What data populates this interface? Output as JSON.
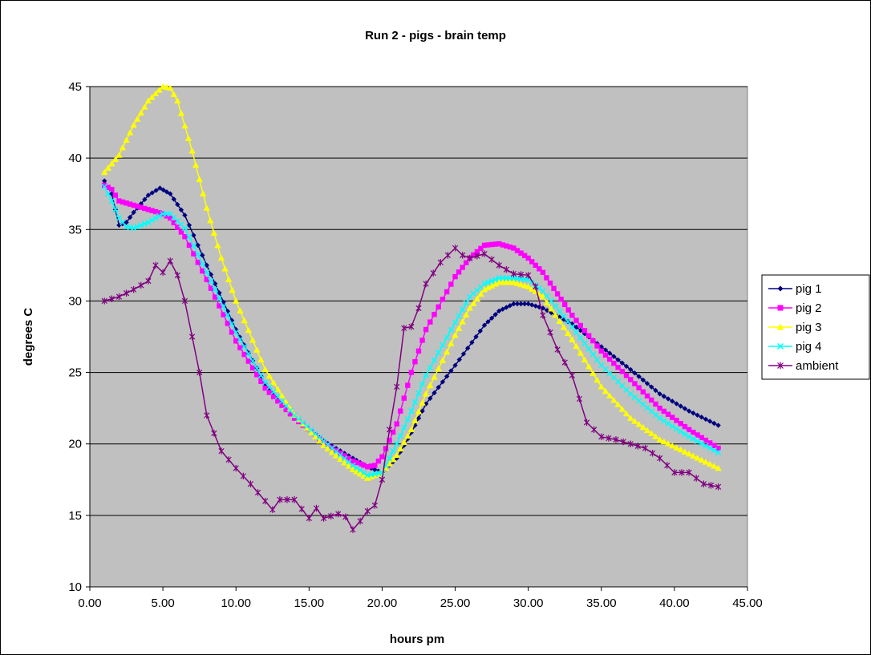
{
  "chart_data": {
    "type": "line",
    "title": "Run 2 - pigs - brain temp",
    "xlabel": "hours pm",
    "ylabel": "degrees C",
    "xlim": [
      0,
      45
    ],
    "ylim": [
      10,
      45
    ],
    "x_ticks": [
      "0.00",
      "5.00",
      "10.00",
      "15.00",
      "20.00",
      "25.00",
      "30.00",
      "35.00",
      "40.00",
      "45.00"
    ],
    "y_ticks": [
      "10",
      "15",
      "20",
      "25",
      "30",
      "35",
      "40",
      "45"
    ],
    "plot_background": "#c0c0c0",
    "grid": "horizontal",
    "legend_position": "right",
    "series": [
      {
        "name": "pig 1",
        "color": "#000080",
        "marker": "diamond",
        "points": [
          [
            1.0,
            38.4
          ],
          [
            1.5,
            37.5
          ],
          [
            2.0,
            35.3
          ],
          [
            2.5,
            35.5
          ],
          [
            3.0,
            36.2
          ],
          [
            4.0,
            37.4
          ],
          [
            4.8,
            37.9
          ],
          [
            5.5,
            37.5
          ],
          [
            6.5,
            36.0
          ],
          [
            8.0,
            32.5
          ],
          [
            10.0,
            28.0
          ],
          [
            12.0,
            24.2
          ],
          [
            14.0,
            21.8
          ],
          [
            16.0,
            20.2
          ],
          [
            18.0,
            19.0
          ],
          [
            19.0,
            18.4
          ],
          [
            20.0,
            18.0
          ],
          [
            21.0,
            19.0
          ],
          [
            22.0,
            20.8
          ],
          [
            23.0,
            22.8
          ],
          [
            25.0,
            25.5
          ],
          [
            27.0,
            28.3
          ],
          [
            28.0,
            29.3
          ],
          [
            29.0,
            29.8
          ],
          [
            30.0,
            29.8
          ],
          [
            31.0,
            29.5
          ],
          [
            33.0,
            28.4
          ],
          [
            35.0,
            26.8
          ],
          [
            37.0,
            25.2
          ],
          [
            39.0,
            23.5
          ],
          [
            41.0,
            22.3
          ],
          [
            43.0,
            21.3
          ]
        ]
      },
      {
        "name": "pig 2",
        "color": "#ff00ff",
        "marker": "square",
        "points": [
          [
            1.0,
            38.1
          ],
          [
            1.5,
            37.8
          ],
          [
            2.0,
            37.0
          ],
          [
            3.0,
            36.7
          ],
          [
            4.0,
            36.4
          ],
          [
            5.0,
            36.1
          ],
          [
            5.5,
            35.8
          ],
          [
            6.5,
            34.5
          ],
          [
            8.0,
            31.5
          ],
          [
            10.0,
            27.2
          ],
          [
            12.0,
            23.9
          ],
          [
            14.0,
            21.8
          ],
          [
            16.0,
            20.1
          ],
          [
            18.0,
            18.8
          ],
          [
            19.0,
            18.4
          ],
          [
            19.5,
            18.5
          ],
          [
            20.0,
            19.1
          ],
          [
            21.0,
            21.4
          ],
          [
            22.0,
            25.0
          ],
          [
            23.0,
            28.0
          ],
          [
            25.0,
            31.7
          ],
          [
            26.0,
            33.0
          ],
          [
            27.0,
            33.9
          ],
          [
            28.0,
            34.0
          ],
          [
            29.0,
            33.7
          ],
          [
            30.0,
            33.0
          ],
          [
            31.0,
            32.0
          ],
          [
            32.0,
            30.5
          ],
          [
            33.0,
            29.0
          ],
          [
            35.0,
            26.5
          ],
          [
            37.0,
            24.5
          ],
          [
            39.0,
            22.5
          ],
          [
            41.0,
            21.0
          ],
          [
            43.0,
            19.7
          ]
        ]
      },
      {
        "name": "pig 3",
        "color": "#ffff00",
        "marker": "triangle",
        "points": [
          [
            1.0,
            39.0
          ],
          [
            2.0,
            40.2
          ],
          [
            3.0,
            42.3
          ],
          [
            4.0,
            44.0
          ],
          [
            5.0,
            45.0
          ],
          [
            5.5,
            44.9
          ],
          [
            6.0,
            44.0
          ],
          [
            7.0,
            40.5
          ],
          [
            8.0,
            36.5
          ],
          [
            9.0,
            33.0
          ],
          [
            10.0,
            30.0
          ],
          [
            12.0,
            25.2
          ],
          [
            14.0,
            22.0
          ],
          [
            16.0,
            19.9
          ],
          [
            18.0,
            18.2
          ],
          [
            19.0,
            17.6
          ],
          [
            20.0,
            18.0
          ],
          [
            21.0,
            19.2
          ],
          [
            22.0,
            21.0
          ],
          [
            23.0,
            23.5
          ],
          [
            25.0,
            27.6
          ],
          [
            26.0,
            29.5
          ],
          [
            27.0,
            30.8
          ],
          [
            28.0,
            31.3
          ],
          [
            29.0,
            31.3
          ],
          [
            30.0,
            31.0
          ],
          [
            31.0,
            30.3
          ],
          [
            33.0,
            27.3
          ],
          [
            35.0,
            24.0
          ],
          [
            37.0,
            21.8
          ],
          [
            39.0,
            20.3
          ],
          [
            41.0,
            19.3
          ],
          [
            43.0,
            18.3
          ]
        ]
      },
      {
        "name": "pig 4",
        "color": "#00ffff",
        "marker": "x",
        "points": [
          [
            1.0,
            38.0
          ],
          [
            1.5,
            37.0
          ],
          [
            2.0,
            35.8
          ],
          [
            2.5,
            35.2
          ],
          [
            3.0,
            35.1
          ],
          [
            4.0,
            35.5
          ],
          [
            5.0,
            36.1
          ],
          [
            5.5,
            36.1
          ],
          [
            6.5,
            35.1
          ],
          [
            8.0,
            32.0
          ],
          [
            10.0,
            27.8
          ],
          [
            12.0,
            24.3
          ],
          [
            14.0,
            22.0
          ],
          [
            16.0,
            20.2
          ],
          [
            18.0,
            18.5
          ],
          [
            19.0,
            17.8
          ],
          [
            20.0,
            18.0
          ],
          [
            21.0,
            20.0
          ],
          [
            22.0,
            22.3
          ],
          [
            23.0,
            24.8
          ],
          [
            25.0,
            28.5
          ],
          [
            26.0,
            30.3
          ],
          [
            27.0,
            31.2
          ],
          [
            28.0,
            31.6
          ],
          [
            29.0,
            31.6
          ],
          [
            30.0,
            31.5
          ],
          [
            31.0,
            30.7
          ],
          [
            33.0,
            28.2
          ],
          [
            35.0,
            25.5
          ],
          [
            37.0,
            23.5
          ],
          [
            39.0,
            21.8
          ],
          [
            41.0,
            20.5
          ],
          [
            43.0,
            19.4
          ]
        ]
      },
      {
        "name": "ambient",
        "color": "#800080",
        "marker": "star",
        "points": [
          [
            1.0,
            30.0
          ],
          [
            2.0,
            30.3
          ],
          [
            3.0,
            30.8
          ],
          [
            4.0,
            31.4
          ],
          [
            4.5,
            32.5
          ],
          [
            5.0,
            32.0
          ],
          [
            5.5,
            32.8
          ],
          [
            6.0,
            31.8
          ],
          [
            6.5,
            30.0
          ],
          [
            7.0,
            27.5
          ],
          [
            7.5,
            25.0
          ],
          [
            8.0,
            22.0
          ],
          [
            9.0,
            19.5
          ],
          [
            10.0,
            18.3
          ],
          [
            11.0,
            17.2
          ],
          [
            12.0,
            16.0
          ],
          [
            12.5,
            15.4
          ],
          [
            13.0,
            16.1
          ],
          [
            14.0,
            16.1
          ],
          [
            15.0,
            14.8
          ],
          [
            15.5,
            15.5
          ],
          [
            16.0,
            14.8
          ],
          [
            17.0,
            15.1
          ],
          [
            17.5,
            14.9
          ],
          [
            18.0,
            14.0
          ],
          [
            18.5,
            14.6
          ],
          [
            19.0,
            15.3
          ],
          [
            19.5,
            15.7
          ],
          [
            20.0,
            17.5
          ],
          [
            20.5,
            21.0
          ],
          [
            21.0,
            24.0
          ],
          [
            21.5,
            28.1
          ],
          [
            22.0,
            28.2
          ],
          [
            22.5,
            29.5
          ],
          [
            23.0,
            31.2
          ],
          [
            24.0,
            32.7
          ],
          [
            25.0,
            33.7
          ],
          [
            25.5,
            33.2
          ],
          [
            26.0,
            33.0
          ],
          [
            27.0,
            33.3
          ],
          [
            28.0,
            32.5
          ],
          [
            29.0,
            31.9
          ],
          [
            30.0,
            31.8
          ],
          [
            30.5,
            31.0
          ],
          [
            31.0,
            29.0
          ],
          [
            32.0,
            26.6
          ],
          [
            33.0,
            24.8
          ],
          [
            34.0,
            21.5
          ],
          [
            35.0,
            20.5
          ],
          [
            36.0,
            20.3
          ],
          [
            37.0,
            20.0
          ],
          [
            38.0,
            19.7
          ],
          [
            39.0,
            19.0
          ],
          [
            40.0,
            18.0
          ],
          [
            41.0,
            18.0
          ],
          [
            42.0,
            17.2
          ],
          [
            43.0,
            17.0
          ]
        ]
      }
    ]
  }
}
